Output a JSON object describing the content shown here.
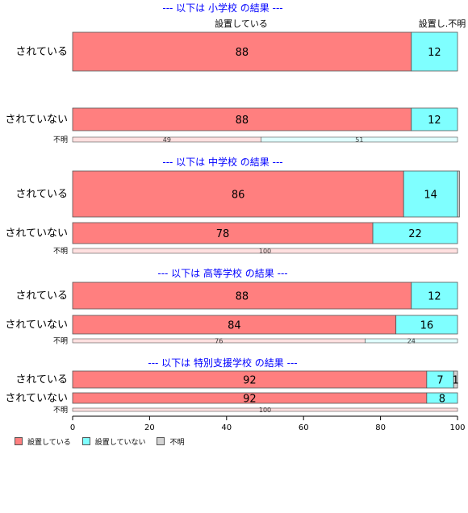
{
  "chart_data": {
    "type": "bar",
    "orientation": "horizontal",
    "stacked": "percent",
    "top_headers": [
      "設置している",
      "設置し.不明"
    ],
    "xlim": [
      0,
      100
    ],
    "xticks": [
      0,
      20,
      40,
      60,
      80,
      100
    ],
    "series_colors": [
      "#ff7f7f",
      "#7fffff",
      "#d3d3d3"
    ],
    "groups": [
      {
        "title": "--- 以下は 小学校 の結果 ---",
        "rows": [
          {
            "label": "されている",
            "values": [
              88,
              12,
              0
            ]
          },
          {
            "label": "されていない",
            "values": [
              88,
              12,
              0
            ]
          },
          {
            "label": "不明",
            "values": [
              49,
              51,
              0
            ],
            "thin": true
          }
        ]
      },
      {
        "title": "--- 以下は 中学校 の結果 ---",
        "rows": [
          {
            "label": "されている",
            "values": [
              86,
              14,
              0.5
            ]
          },
          {
            "label": "されていない",
            "values": [
              78,
              22,
              0
            ]
          },
          {
            "label": "不明",
            "values": [
              100,
              0,
              0
            ],
            "thin": true
          }
        ]
      },
      {
        "title": "--- 以下は 高等学校 の結果 ---",
        "rows": [
          {
            "label": "されている",
            "values": [
              88,
              12,
              0
            ]
          },
          {
            "label": "されていない",
            "values": [
              84,
              16,
              0
            ]
          },
          {
            "label": "不明",
            "values": [
              76,
              24,
              0
            ],
            "thin": true
          }
        ]
      },
      {
        "title": "--- 以下は 特別支援学校 の結果 ---",
        "rows": [
          {
            "label": "されている",
            "values": [
              92,
              7,
              1
            ]
          },
          {
            "label": "されていない",
            "values": [
              92,
              8,
              0
            ]
          },
          {
            "label": "不明",
            "values": [
              100,
              0,
              0
            ],
            "thin": true
          }
        ]
      }
    ],
    "legend": [
      "設置している",
      "設置していない",
      "不明"
    ]
  }
}
